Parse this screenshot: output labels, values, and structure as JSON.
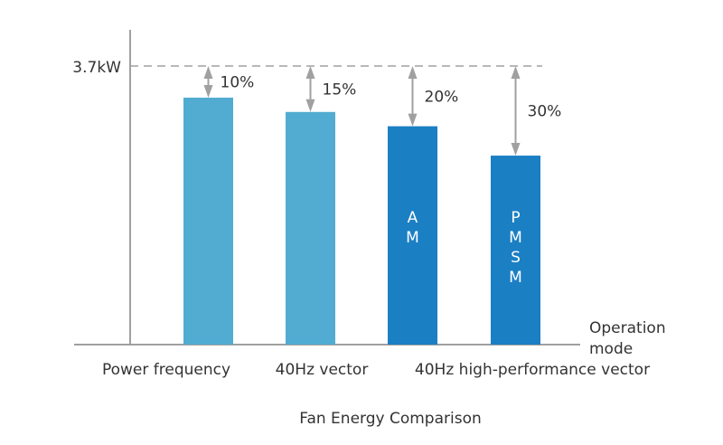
{
  "chart_data": {
    "type": "bar",
    "title": "Fan Energy Comparison",
    "xlabel": "Operation mode",
    "ylabel": "",
    "reference_label": "3.7kW",
    "reference_value": 3.7,
    "ylim": [
      0,
      3.7
    ],
    "grid": false,
    "bars": [
      {
        "value": 3.28,
        "reduction_label": "10%",
        "inner_label": "",
        "color": "#52acd1"
      },
      {
        "value": 3.09,
        "reduction_label": "15%",
        "inner_label": "",
        "color": "#52acd1"
      },
      {
        "value": 2.9,
        "reduction_label": "20%",
        "inner_label": "A M",
        "color": "#1b7fc4"
      },
      {
        "value": 2.51,
        "reduction_label": "30%",
        "inner_label": "P M S M",
        "color": "#1b7fc4"
      }
    ],
    "categories": [
      "Power frequency",
      "40Hz vector",
      "40Hz high-performance vector"
    ],
    "arrow_color": "#a0a0a0",
    "axis_color": "#a0a0a0"
  }
}
